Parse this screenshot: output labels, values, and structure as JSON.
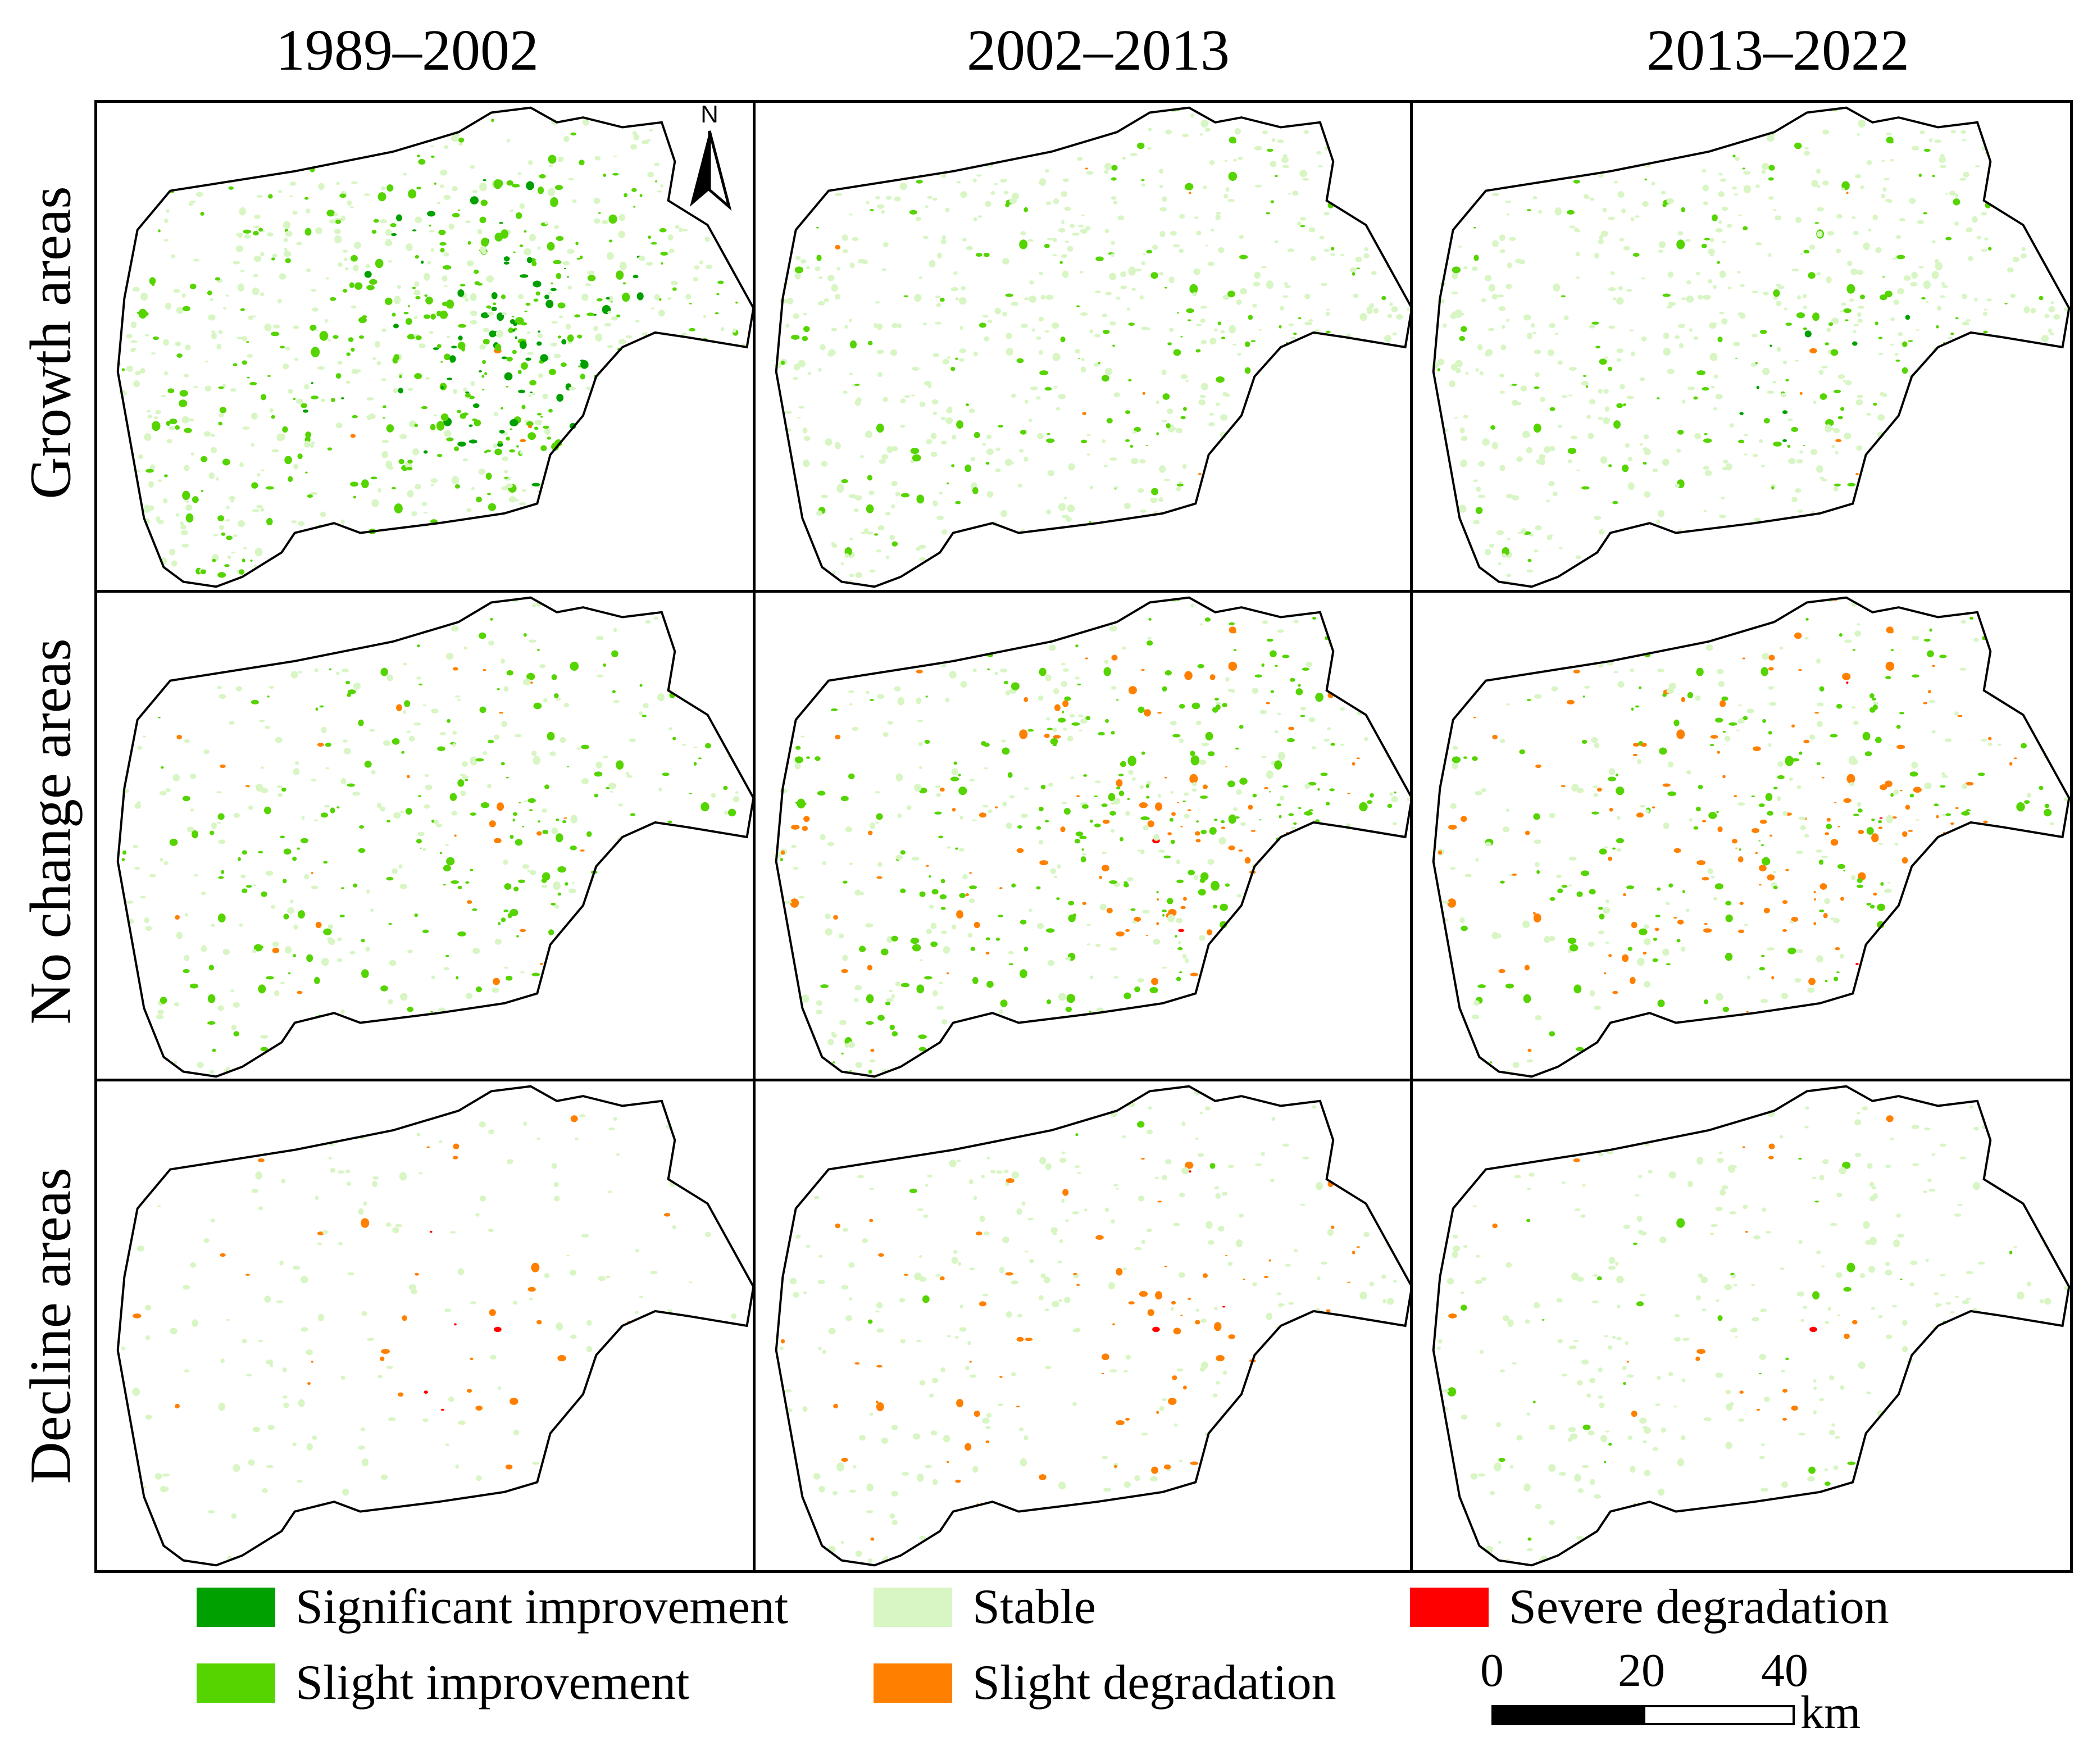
{
  "columns": [
    "1989–2002",
    "2002–2013",
    "2013–2022"
  ],
  "rows": [
    "Growth areas",
    "No change areas",
    "Decline areas"
  ],
  "legend": [
    {
      "label": "Significant improvement",
      "color": "#00a000"
    },
    {
      "label": "Stable",
      "color": "#d8f5c4"
    },
    {
      "label": "Severe degradation",
      "color": "#ff0000"
    },
    {
      "label": "Slight improvement",
      "color": "#55d400"
    },
    {
      "label": "Slight degradation",
      "color": "#ff8000"
    }
  ],
  "scale_bar": {
    "ticks": [
      "0",
      "20",
      "40"
    ],
    "unit": "km"
  },
  "north_arrow": {
    "label": "N",
    "icon": "north-arrow-icon"
  },
  "panel_intensity": [
    [
      {
        "sig": 0.55,
        "slight": 0.75,
        "stable": 0.8,
        "sdeg": 0.02,
        "sev": 0.0
      },
      {
        "sig": 0.05,
        "slight": 0.25,
        "stable": 0.85,
        "sdeg": 0.04,
        "sev": 0.0
      },
      {
        "sig": 0.08,
        "slight": 0.3,
        "stable": 0.85,
        "sdeg": 0.02,
        "sev": 0.0
      }
    ],
    [
      {
        "sig": 0.05,
        "slight": 0.45,
        "stable": 0.4,
        "sdeg": 0.15,
        "sev": 0.0
      },
      {
        "sig": 0.15,
        "slight": 0.7,
        "stable": 0.4,
        "sdeg": 0.45,
        "sev": 0.01
      },
      {
        "sig": 0.15,
        "slight": 0.6,
        "stable": 0.3,
        "sdeg": 0.6,
        "sev": 0.04
      }
    ],
    [
      {
        "sig": 0.0,
        "slight": 0.02,
        "stable": 0.3,
        "sdeg": 0.12,
        "sev": 0.08
      },
      {
        "sig": 0.02,
        "slight": 0.15,
        "stable": 0.45,
        "sdeg": 0.4,
        "sev": 0.04
      },
      {
        "sig": 0.02,
        "slight": 0.1,
        "stable": 0.45,
        "sdeg": 0.12,
        "sev": 0.01
      }
    ]
  ]
}
